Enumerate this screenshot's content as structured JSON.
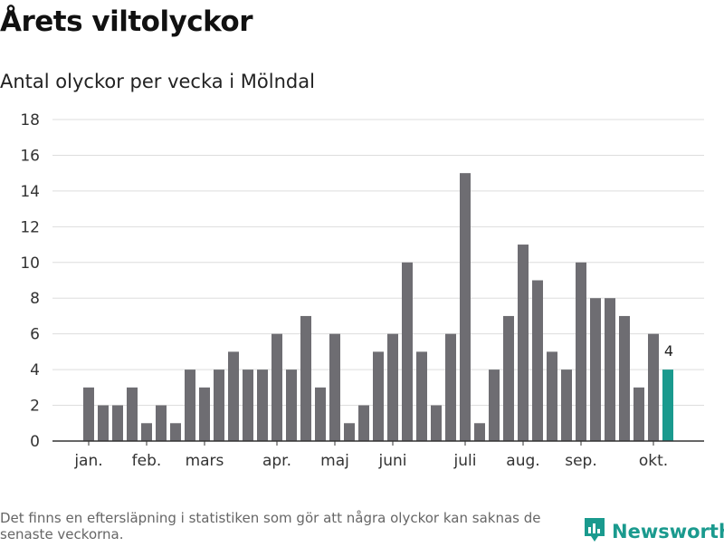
{
  "header": {
    "title": "Årets viltolyckor",
    "subtitle": "Antal olyckor per vecka i Mölndal"
  },
  "footer": {
    "note": "Det finns en eftersläpning i statistiken som gör att några olyckor kan saknas de senaste veckorna.",
    "brand": "Newsworthy"
  },
  "colors": {
    "bar": "#6e6d72",
    "highlight": "#1a9a8e",
    "grid": "#dddddd",
    "axis": "#333333"
  },
  "chart_data": {
    "type": "bar",
    "title": "Antal olyckor per vecka i Mölndal",
    "xlabel": "",
    "ylabel": "",
    "ylim": [
      0,
      18
    ],
    "yticks": [
      0,
      2,
      4,
      6,
      8,
      10,
      12,
      14,
      16,
      18
    ],
    "grid": true,
    "values": [
      3,
      2,
      2,
      3,
      1,
      2,
      1,
      4,
      3,
      4,
      5,
      4,
      4,
      6,
      4,
      7,
      3,
      6,
      1,
      2,
      5,
      6,
      10,
      5,
      2,
      6,
      15,
      1,
      4,
      7,
      11,
      9,
      5,
      4,
      10,
      8,
      8,
      7,
      3,
      6,
      4
    ],
    "highlight_index": 40,
    "highlight_label": "4",
    "month_labels": [
      {
        "label": "jan.",
        "week": 1
      },
      {
        "label": "feb.",
        "week": 5
      },
      {
        "label": "mars",
        "week": 9
      },
      {
        "label": "apr.",
        "week": 14
      },
      {
        "label": "maj",
        "week": 18
      },
      {
        "label": "juni",
        "week": 22
      },
      {
        "label": "juli",
        "week": 27
      },
      {
        "label": "aug.",
        "week": 31
      },
      {
        "label": "sep.",
        "week": 35
      },
      {
        "label": "okt.",
        "week": 40
      }
    ]
  }
}
